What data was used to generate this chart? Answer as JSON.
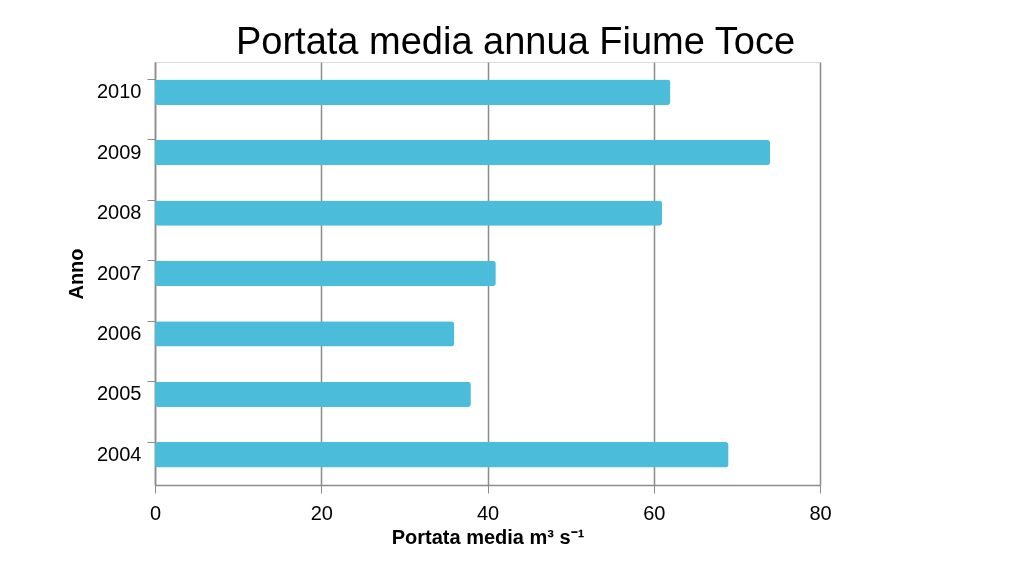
{
  "chart_data": {
    "type": "bar",
    "orientation": "horizontal",
    "title": "Portata media annua Fiume Toce",
    "xlabel": "Portata media m³ s⁻¹",
    "ylabel": "Anno",
    "categories": [
      "2010",
      "2009",
      "2008",
      "2007",
      "2006",
      "2005",
      "2004"
    ],
    "values": [
      62,
      74,
      61,
      41,
      36,
      38,
      69
    ],
    "color": "#4bbcd9",
    "xlim": [
      0,
      80
    ],
    "xticks": [
      0,
      20,
      40,
      60,
      80
    ],
    "grid": "x"
  }
}
